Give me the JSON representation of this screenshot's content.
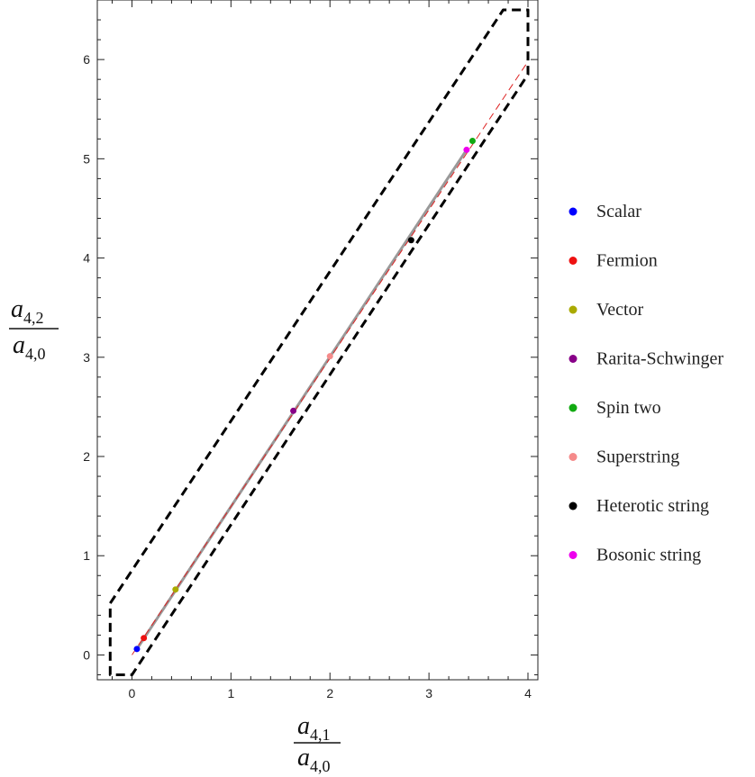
{
  "chart_data": {
    "type": "scatter",
    "xlabel": {
      "main": "a",
      "sub": "4,1"
    },
    "xlabel_den": {
      "main": "a",
      "sub": "4,0"
    },
    "ylabel": {
      "main": "a",
      "sub": "4,2"
    },
    "ylabel_den": {
      "main": "a",
      "sub": "4,0"
    },
    "xlim": [
      -0.35,
      4.1
    ],
    "ylim": [
      -0.25,
      6.6
    ],
    "x_ticks": [
      0,
      1,
      2,
      3,
      4
    ],
    "y_ticks": [
      0,
      1,
      2,
      3,
      4,
      5,
      6
    ],
    "x_tick_labels": [
      "0",
      "1",
      "2",
      "3",
      "4"
    ],
    "y_tick_labels": [
      "0",
      "1",
      "2",
      "3",
      "4",
      "5",
      "6"
    ],
    "grid": false,
    "legend_position": "right",
    "region_boundary": {
      "style": "dashed",
      "color": "#000000",
      "points": [
        [
          -0.22,
          0.52
        ],
        [
          3.75,
          6.5
        ],
        [
          4.0,
          6.5
        ],
        [
          4.0,
          5.85
        ],
        [
          0.0,
          -0.2
        ],
        [
          -0.22,
          -0.2
        ]
      ]
    },
    "reference_line": {
      "style": "dashed",
      "color": "#dd2222",
      "points": [
        [
          0.0,
          0.0
        ],
        [
          4.0,
          5.98
        ]
      ]
    },
    "theory_curve": {
      "color": "#999999",
      "points": [
        [
          0.05,
          0.06
        ],
        [
          3.38,
          5.09
        ]
      ]
    },
    "series": [
      {
        "name": "Scalar",
        "color": "#0000ff",
        "points": [
          [
            0.05,
            0.06
          ]
        ]
      },
      {
        "name": "Fermion",
        "color": "#ee1111",
        "points": [
          [
            0.12,
            0.17
          ]
        ]
      },
      {
        "name": "Vector",
        "color": "#aaaa00",
        "points": [
          [
            0.44,
            0.66
          ]
        ]
      },
      {
        "name": "Rarita-Schwinger",
        "color": "#880088",
        "points": [
          [
            1.63,
            2.46
          ]
        ]
      },
      {
        "name": "Spin two",
        "color": "#11aa11",
        "points": [
          [
            3.44,
            5.18
          ]
        ]
      },
      {
        "name": "Superstring",
        "color": "#f58a8a",
        "points": [
          [
            2.0,
            3.01
          ]
        ]
      },
      {
        "name": "Heterotic string",
        "color": "#000000",
        "points": [
          [
            2.82,
            4.18
          ]
        ]
      },
      {
        "name": "Bosonic string",
        "color": "#ee00ee",
        "points": [
          [
            3.38,
            5.09
          ]
        ]
      }
    ]
  }
}
